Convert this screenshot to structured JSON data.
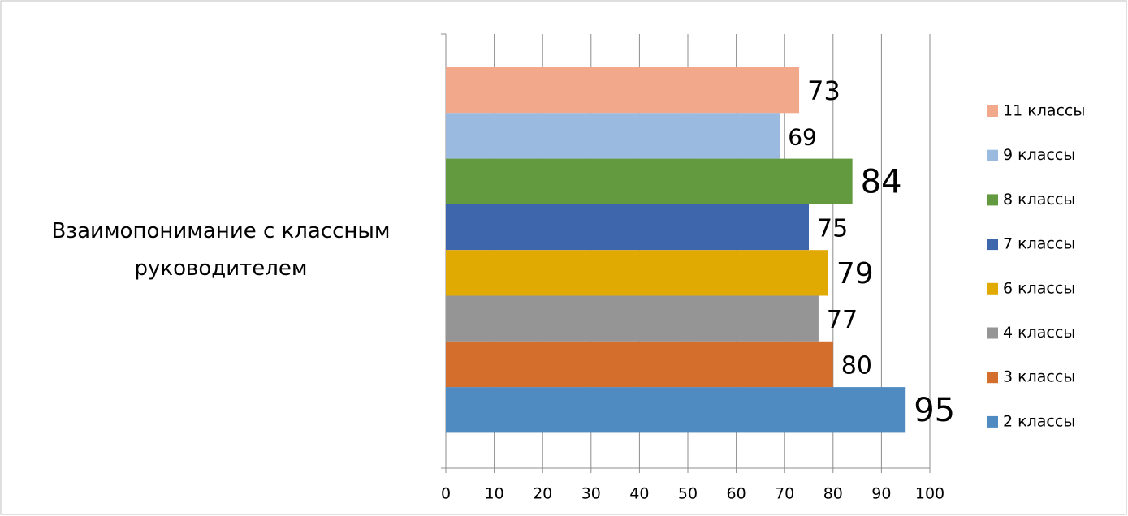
{
  "chart_data": {
    "type": "bar",
    "orientation": "horizontal",
    "categories": [
      "Взаимопонимание с классным руководителем"
    ],
    "series": [
      {
        "name": "11 классы",
        "color": "#f1a88b",
        "values": [
          73
        ]
      },
      {
        "name": "9 классы",
        "color": "#9bbae0",
        "values": [
          69
        ]
      },
      {
        "name": "8 классы",
        "color": "#63993f",
        "values": [
          84
        ]
      },
      {
        "name": "7 классы",
        "color": "#3d66ad",
        "values": [
          75
        ]
      },
      {
        "name": "6 классы",
        "color": "#e1aa02",
        "values": [
          79
        ]
      },
      {
        "name": "4 классы",
        "color": "#959595",
        "values": [
          77
        ]
      },
      {
        "name": "3 классы",
        "color": "#d36e2c",
        "values": [
          80
        ]
      },
      {
        "name": "2 классы",
        "color": "#4f8ac0",
        "values": [
          95
        ]
      }
    ],
    "xlim": [
      0,
      100
    ],
    "xticks": [
      0,
      10,
      20,
      30,
      40,
      50,
      60,
      70,
      80,
      90,
      100
    ],
    "grid": true,
    "legend": "right"
  }
}
